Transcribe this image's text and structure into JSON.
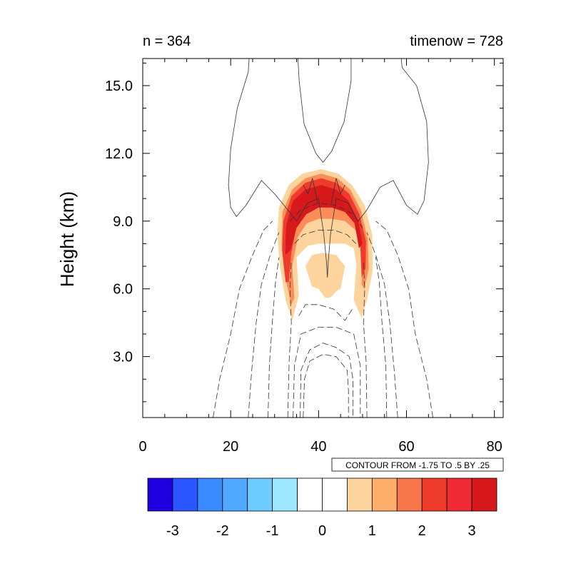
{
  "chart_data": {
    "type": "contour",
    "title_left": "n = 364",
    "title_right": "timenow = 728",
    "xlabel": "",
    "ylabel": "Height (km)",
    "xlim": [
      0,
      82
    ],
    "ylim": [
      0.3,
      16.2
    ],
    "x_ticks": [
      {
        "value": 0,
        "label": "0"
      },
      {
        "value": 20,
        "label": "20"
      },
      {
        "value": 40,
        "label": "40"
      },
      {
        "value": 60,
        "label": "60"
      },
      {
        "value": 80,
        "label": "80"
      }
    ],
    "y_ticks": [
      {
        "value": 3,
        "label": "3.0"
      },
      {
        "value": 6,
        "label": "6.0"
      },
      {
        "value": 9,
        "label": "9.0"
      },
      {
        "value": 12,
        "label": "12.0"
      },
      {
        "value": 15,
        "label": "15.0"
      }
    ],
    "contour_info": "CONTOUR FROM -1.75 TO .5 BY .25",
    "fill_regions": [
      {
        "name": "outer",
        "color": "#fdd49e",
        "points": [
          [
            34,
            4.6
          ],
          [
            32.5,
            5.5
          ],
          [
            31.2,
            7.0
          ],
          [
            30.6,
            8.4
          ],
          [
            31.0,
            9.6
          ],
          [
            33.2,
            10.6
          ],
          [
            36.3,
            11.1
          ],
          [
            40.6,
            11.3
          ],
          [
            44.5,
            11.1
          ],
          [
            47.6,
            10.6
          ],
          [
            50.5,
            9.7
          ],
          [
            52.2,
            8.4
          ],
          [
            52.3,
            6.8
          ],
          [
            51.0,
            5.5
          ],
          [
            49.8,
            4.7
          ],
          [
            48.0,
            5.5
          ],
          [
            48.6,
            7.1
          ],
          [
            48.0,
            7.8
          ],
          [
            46.0,
            8.0
          ],
          [
            43.0,
            8.0
          ],
          [
            40.0,
            8.0
          ],
          [
            37.5,
            7.9
          ],
          [
            35.0,
            7.4
          ],
          [
            35.5,
            5.7
          ]
        ]
      },
      {
        "name": "inner-outer",
        "color": "#fdd49e",
        "points": [
          [
            37.0,
            7.0
          ],
          [
            38.5,
            7.5
          ],
          [
            41.0,
            7.6
          ],
          [
            44.0,
            7.5
          ],
          [
            46.0,
            7.0
          ],
          [
            45.0,
            6.0
          ],
          [
            44.0,
            5.9
          ],
          [
            43.2,
            5.7
          ],
          [
            42.5,
            5.6
          ],
          [
            41.5,
            5.6
          ],
          [
            40.0,
            6.0
          ],
          [
            38.5,
            6.1
          ]
        ]
      },
      {
        "name": "mid",
        "color": "#fc8d59",
        "points": [
          [
            33.8,
            5.3
          ],
          [
            32.3,
            6.6
          ],
          [
            31.6,
            8.0
          ],
          [
            31.8,
            9.4
          ],
          [
            34.0,
            10.4
          ],
          [
            37.0,
            10.9
          ],
          [
            40.6,
            11.1
          ],
          [
            44.3,
            10.9
          ],
          [
            47.2,
            10.4
          ],
          [
            49.6,
            9.5
          ],
          [
            51.2,
            8.2
          ],
          [
            51.4,
            6.9
          ],
          [
            50.4,
            6.0
          ],
          [
            49.8,
            6.2
          ],
          [
            50.0,
            7.6
          ],
          [
            48.4,
            8.6
          ],
          [
            46.0,
            9.0
          ],
          [
            43.0,
            9.1
          ],
          [
            40.0,
            9.1
          ],
          [
            37.3,
            8.9
          ],
          [
            35.3,
            8.3
          ],
          [
            34.0,
            7.0
          ],
          [
            34.5,
            5.6
          ]
        ]
      },
      {
        "name": "high",
        "color": "#ef3b2c",
        "points": [
          [
            32.5,
            6.3
          ],
          [
            31.7,
            7.7
          ],
          [
            32.0,
            9.0
          ],
          [
            33.8,
            10.1
          ],
          [
            37.0,
            10.7
          ],
          [
            40.6,
            10.9
          ],
          [
            44.0,
            10.7
          ],
          [
            47.0,
            10.2
          ],
          [
            49.3,
            9.3
          ],
          [
            50.8,
            8.1
          ],
          [
            50.7,
            6.9
          ],
          [
            49.8,
            6.5
          ],
          [
            49.5,
            7.9
          ],
          [
            48.0,
            9.2
          ],
          [
            45.5,
            9.7
          ],
          [
            42.7,
            9.8
          ],
          [
            40.2,
            9.8
          ],
          [
            37.6,
            9.6
          ],
          [
            35.2,
            9.0
          ],
          [
            33.8,
            7.6
          ],
          [
            33.2,
            6.3
          ]
        ]
      },
      {
        "name": "peak",
        "color": "#d7191c",
        "points": [
          [
            32.4,
            7.5
          ],
          [
            32.6,
            8.8
          ],
          [
            34.2,
            9.9
          ],
          [
            37.0,
            10.4
          ],
          [
            40.6,
            10.6
          ],
          [
            44.0,
            10.4
          ],
          [
            46.8,
            9.9
          ],
          [
            49.0,
            9.0
          ],
          [
            50.0,
            8.0
          ],
          [
            49.2,
            7.8
          ],
          [
            48.2,
            8.9
          ],
          [
            46.0,
            9.4
          ],
          [
            43.0,
            9.6
          ],
          [
            40.0,
            9.6
          ],
          [
            37.2,
            9.3
          ],
          [
            35.0,
            8.7
          ],
          [
            33.6,
            7.7
          ]
        ]
      }
    ],
    "solid_contours": [
      [
        [
          24.2,
          16.2
        ],
        [
          24.0,
          15.6
        ],
        [
          21.5,
          14.0
        ],
        [
          20.0,
          12.2
        ],
        [
          19.5,
          10.6
        ],
        [
          20.0,
          9.6
        ],
        [
          21.3,
          9.2
        ],
        [
          23.5,
          9.7
        ],
        [
          27.0,
          10.8
        ],
        [
          30.0,
          10.2
        ],
        [
          33.0,
          9.5
        ],
        [
          35.0,
          9.0
        ],
        [
          37.5,
          9.8
        ],
        [
          40.0,
          10.0
        ],
        [
          41.2,
          8.4
        ],
        [
          41.8,
          7.2
        ],
        [
          42.0,
          6.5
        ],
        [
          42.2,
          7.2
        ],
        [
          42.7,
          8.4
        ],
        [
          44.0,
          10.0
        ],
        [
          46.7,
          9.8
        ],
        [
          49.0,
          9.0
        ],
        [
          51.0,
          9.5
        ],
        [
          54.0,
          10.5
        ],
        [
          57.0,
          10.8
        ],
        [
          60.0,
          9.7
        ],
        [
          62.5,
          9.3
        ],
        [
          64.0,
          9.9
        ],
        [
          65.0,
          11.6
        ],
        [
          64.6,
          13.4
        ],
        [
          62.3,
          15.0
        ],
        [
          59.0,
          15.8
        ],
        [
          58.8,
          16.2
        ]
      ],
      [
        [
          35.3,
          16.2
        ],
        [
          35.6,
          15.2
        ],
        [
          36.7,
          13.3
        ],
        [
          39.4,
          12.0
        ],
        [
          41.0,
          11.6
        ],
        [
          43.0,
          12.1
        ],
        [
          45.8,
          13.4
        ],
        [
          47.4,
          15.2
        ],
        [
          47.4,
          16.2
        ]
      ],
      [
        [
          36.5,
          10.6
        ],
        [
          37.6,
          10.2
        ],
        [
          38.6,
          10.9
        ],
        [
          39.8,
          9.8
        ]
      ],
      [
        [
          42.9,
          9.8
        ],
        [
          44.0,
          10.9
        ],
        [
          45.0,
          10.2
        ],
        [
          46.0,
          10.6
        ]
      ]
    ],
    "dashed_contours": [
      [
        [
          16.0,
          0.3
        ],
        [
          17.5,
          2.0
        ],
        [
          20.0,
          4.0
        ],
        [
          22.0,
          6.0
        ],
        [
          25.0,
          7.5
        ],
        [
          27.5,
          8.6
        ],
        [
          29.5,
          9.0
        ]
      ],
      [
        [
          66.0,
          0.3
        ],
        [
          64.6,
          2.0
        ],
        [
          62.0,
          4.0
        ],
        [
          60.5,
          6.0
        ],
        [
          58.0,
          7.5
        ],
        [
          55.5,
          8.6
        ],
        [
          53.0,
          9.0
        ]
      ],
      [
        [
          24.0,
          0.3
        ],
        [
          24.8,
          2.4
        ],
        [
          25.8,
          4.5
        ],
        [
          27.0,
          6.2
        ],
        [
          29.0,
          7.5
        ],
        [
          31.0,
          8.5
        ]
      ],
      [
        [
          58.0,
          0.3
        ],
        [
          57.2,
          2.4
        ],
        [
          56.2,
          4.5
        ],
        [
          55.0,
          6.2
        ],
        [
          53.0,
          7.5
        ],
        [
          51.0,
          8.5
        ]
      ],
      [
        [
          28.5,
          0.3
        ],
        [
          28.8,
          2.6
        ],
        [
          29.5,
          4.6
        ],
        [
          30.2,
          6.3
        ],
        [
          31.0,
          7.4
        ]
      ],
      [
        [
          55.5,
          0.3
        ],
        [
          55.3,
          2.6
        ],
        [
          54.4,
          4.6
        ],
        [
          53.8,
          6.3
        ],
        [
          53.0,
          7.4
        ]
      ],
      [
        [
          33.0,
          0.3
        ],
        [
          33.3,
          2.8
        ],
        [
          33.8,
          4.5
        ],
        [
          33.5,
          6.0
        ],
        [
          33.8,
          7.3
        ]
      ],
      [
        [
          51.0,
          0.3
        ],
        [
          50.8,
          2.8
        ],
        [
          50.2,
          4.5
        ],
        [
          50.5,
          6.0
        ],
        [
          50.2,
          7.3
        ]
      ],
      [
        [
          34.2,
          0.3
        ],
        [
          34.5,
          2.6
        ],
        [
          36.0,
          4.0
        ],
        [
          40.0,
          4.3
        ],
        [
          44.0,
          4.3
        ],
        [
          48.0,
          4.0
        ],
        [
          49.5,
          2.6
        ],
        [
          49.5,
          0.3
        ]
      ],
      [
        [
          35.8,
          0.3
        ],
        [
          36.0,
          2.4
        ],
        [
          38.0,
          3.3
        ],
        [
          41.0,
          3.6
        ],
        [
          44.0,
          3.4
        ],
        [
          47.0,
          3.0
        ],
        [
          47.8,
          2.0
        ],
        [
          47.8,
          0.3
        ]
      ],
      [
        [
          36.5,
          0.3
        ],
        [
          36.8,
          2.0
        ],
        [
          38.0,
          2.8
        ],
        [
          41.0,
          3.1
        ],
        [
          44.0,
          3.0
        ],
        [
          46.5,
          2.4
        ],
        [
          46.8,
          1.5
        ],
        [
          46.8,
          0.3
        ]
      ],
      [
        [
          35.5,
          4.8
        ],
        [
          37.0,
          5.3
        ],
        [
          40.0,
          5.3
        ],
        [
          43.5,
          5.1
        ],
        [
          46.0,
          4.6
        ],
        [
          48.0,
          5.2
        ]
      ],
      [
        [
          34.5,
          8.0
        ],
        [
          36.5,
          8.4
        ],
        [
          40.0,
          8.6
        ],
        [
          43.5,
          8.6
        ],
        [
          46.5,
          8.4
        ],
        [
          48.5,
          8.0
        ]
      ],
      [
        [
          33.5,
          9.0
        ],
        [
          36.0,
          9.5
        ],
        [
          40.0,
          9.8
        ],
        [
          44.0,
          9.7
        ],
        [
          48.0,
          9.3
        ],
        [
          50.0,
          8.7
        ]
      ]
    ],
    "colorbar": {
      "labels": [
        "-3",
        "-2",
        "-1",
        "0",
        "1",
        "2",
        "3"
      ],
      "colors": [
        "#2000e0",
        "#2a55ff",
        "#3a8bff",
        "#50a8ff",
        "#6ecbff",
        "#9ee8ff",
        "#ffffff",
        "#ffffff",
        "#fdd49e",
        "#fdae6b",
        "#f8764b",
        "#ef3b2c",
        "#ee2a35",
        "#d7191c"
      ]
    }
  }
}
